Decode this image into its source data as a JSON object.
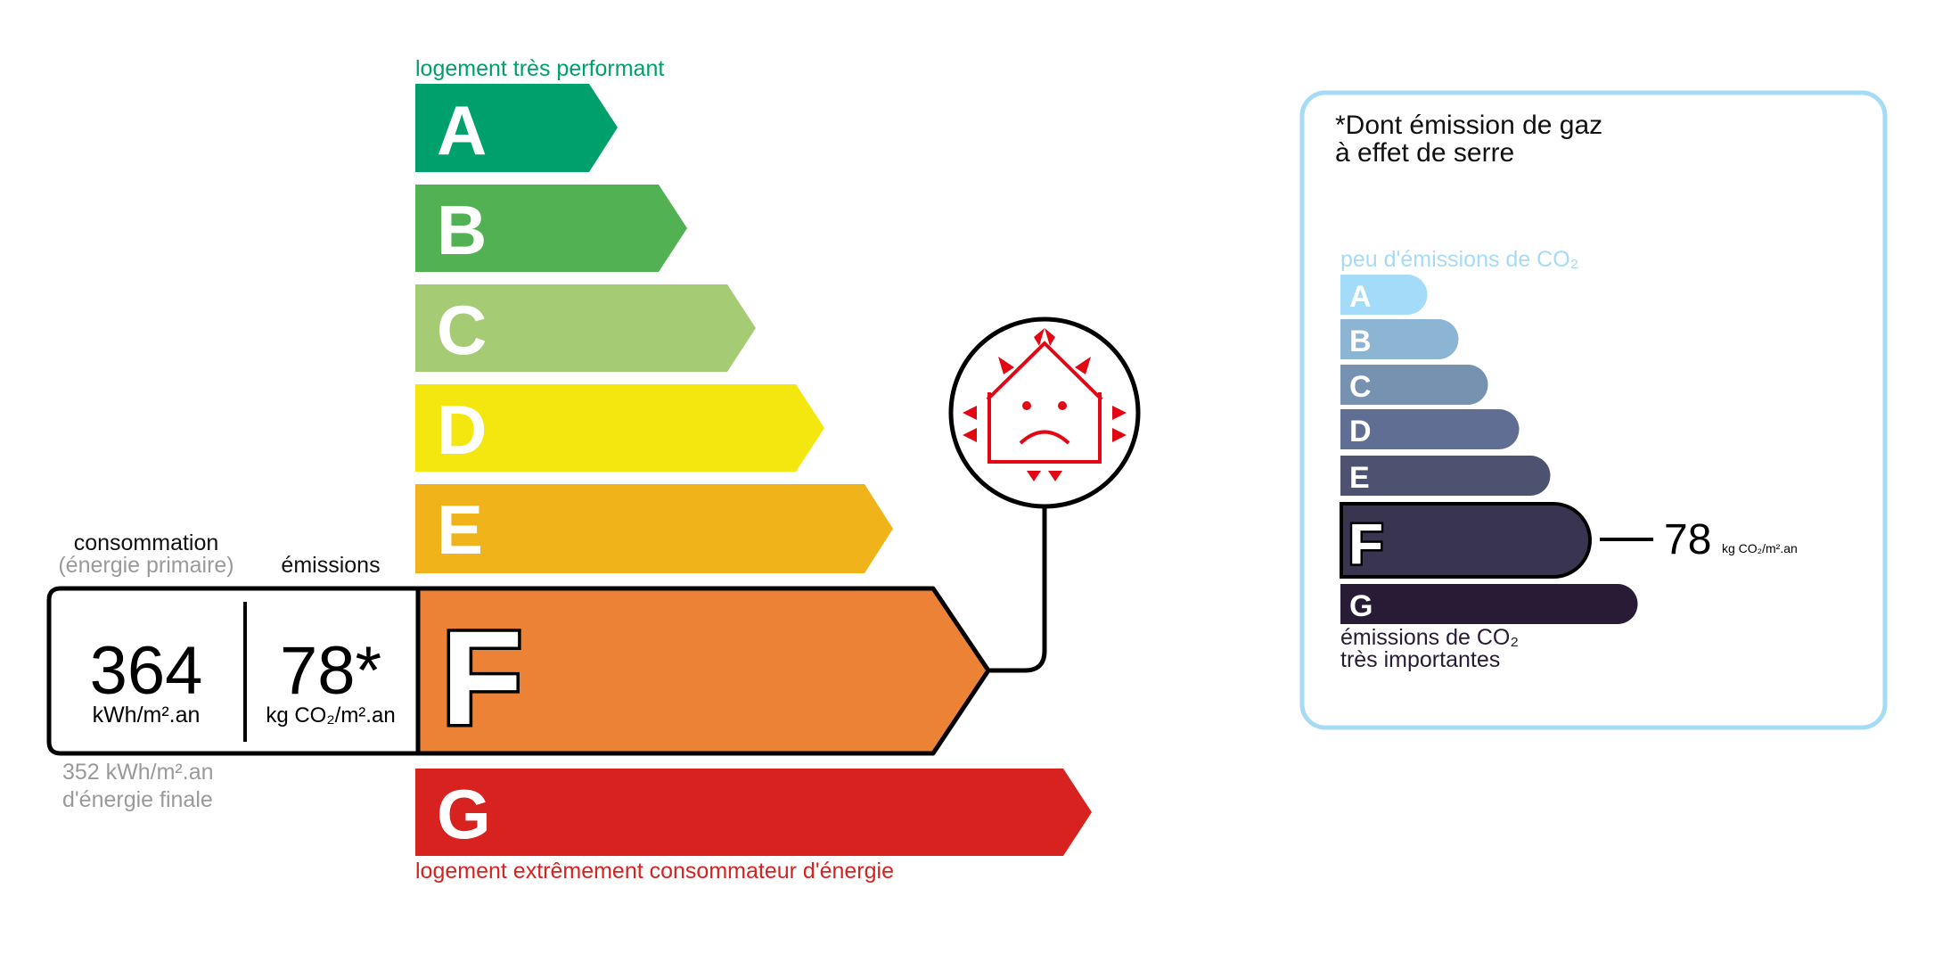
{
  "energy": {
    "top_label": "logement très performant",
    "bottom_label": "logement extrêmement consommateur d'énergie",
    "top_color": "#00a06d",
    "bottom_color": "#d7221f",
    "classes": [
      {
        "letter": "A",
        "color": "#00a06d"
      },
      {
        "letter": "B",
        "color": "#52b153"
      },
      {
        "letter": "C",
        "color": "#a5cc74"
      },
      {
        "letter": "D",
        "color": "#f4e70f"
      },
      {
        "letter": "E",
        "color": "#f0b41a"
      },
      {
        "letter": "F",
        "color": "#eb8235"
      },
      {
        "letter": "G",
        "color": "#d7221f"
      }
    ],
    "current_class": "F",
    "consumption_label": "consommation",
    "consumption_sub": "(énergie primaire)",
    "emissions_label": "émissions",
    "consumption_value": "364",
    "consumption_unit": "kWh/m².an",
    "emissions_value": "78*",
    "emissions_unit": "kg CO₂/m².an",
    "final_energy_value": "352 kWh/m².an",
    "final_energy_label": "d'énergie finale",
    "icon": "house-heat-loss-sad-icon",
    "icon_color": "#e30613"
  },
  "ges": {
    "title_line1": "*Dont émission de gaz",
    "title_line2": "à effet de serre",
    "top_label": "peu d'émissions de CO₂",
    "bottom_label_line1": "émissions de CO₂",
    "bottom_label_line2": "très importantes",
    "border_color": "#a6dbf5",
    "classes": [
      {
        "letter": "A",
        "color": "#a4dbf8"
      },
      {
        "letter": "B",
        "color": "#8cb4d3"
      },
      {
        "letter": "C",
        "color": "#7792b1"
      },
      {
        "letter": "D",
        "color": "#5f6e92"
      },
      {
        "letter": "E",
        "color": "#4d5271"
      },
      {
        "letter": "F",
        "color": "#393551"
      },
      {
        "letter": "G",
        "color": "#281b35"
      }
    ],
    "current_class": "F",
    "value": "78",
    "unit": "kg CO₂/m².an"
  }
}
